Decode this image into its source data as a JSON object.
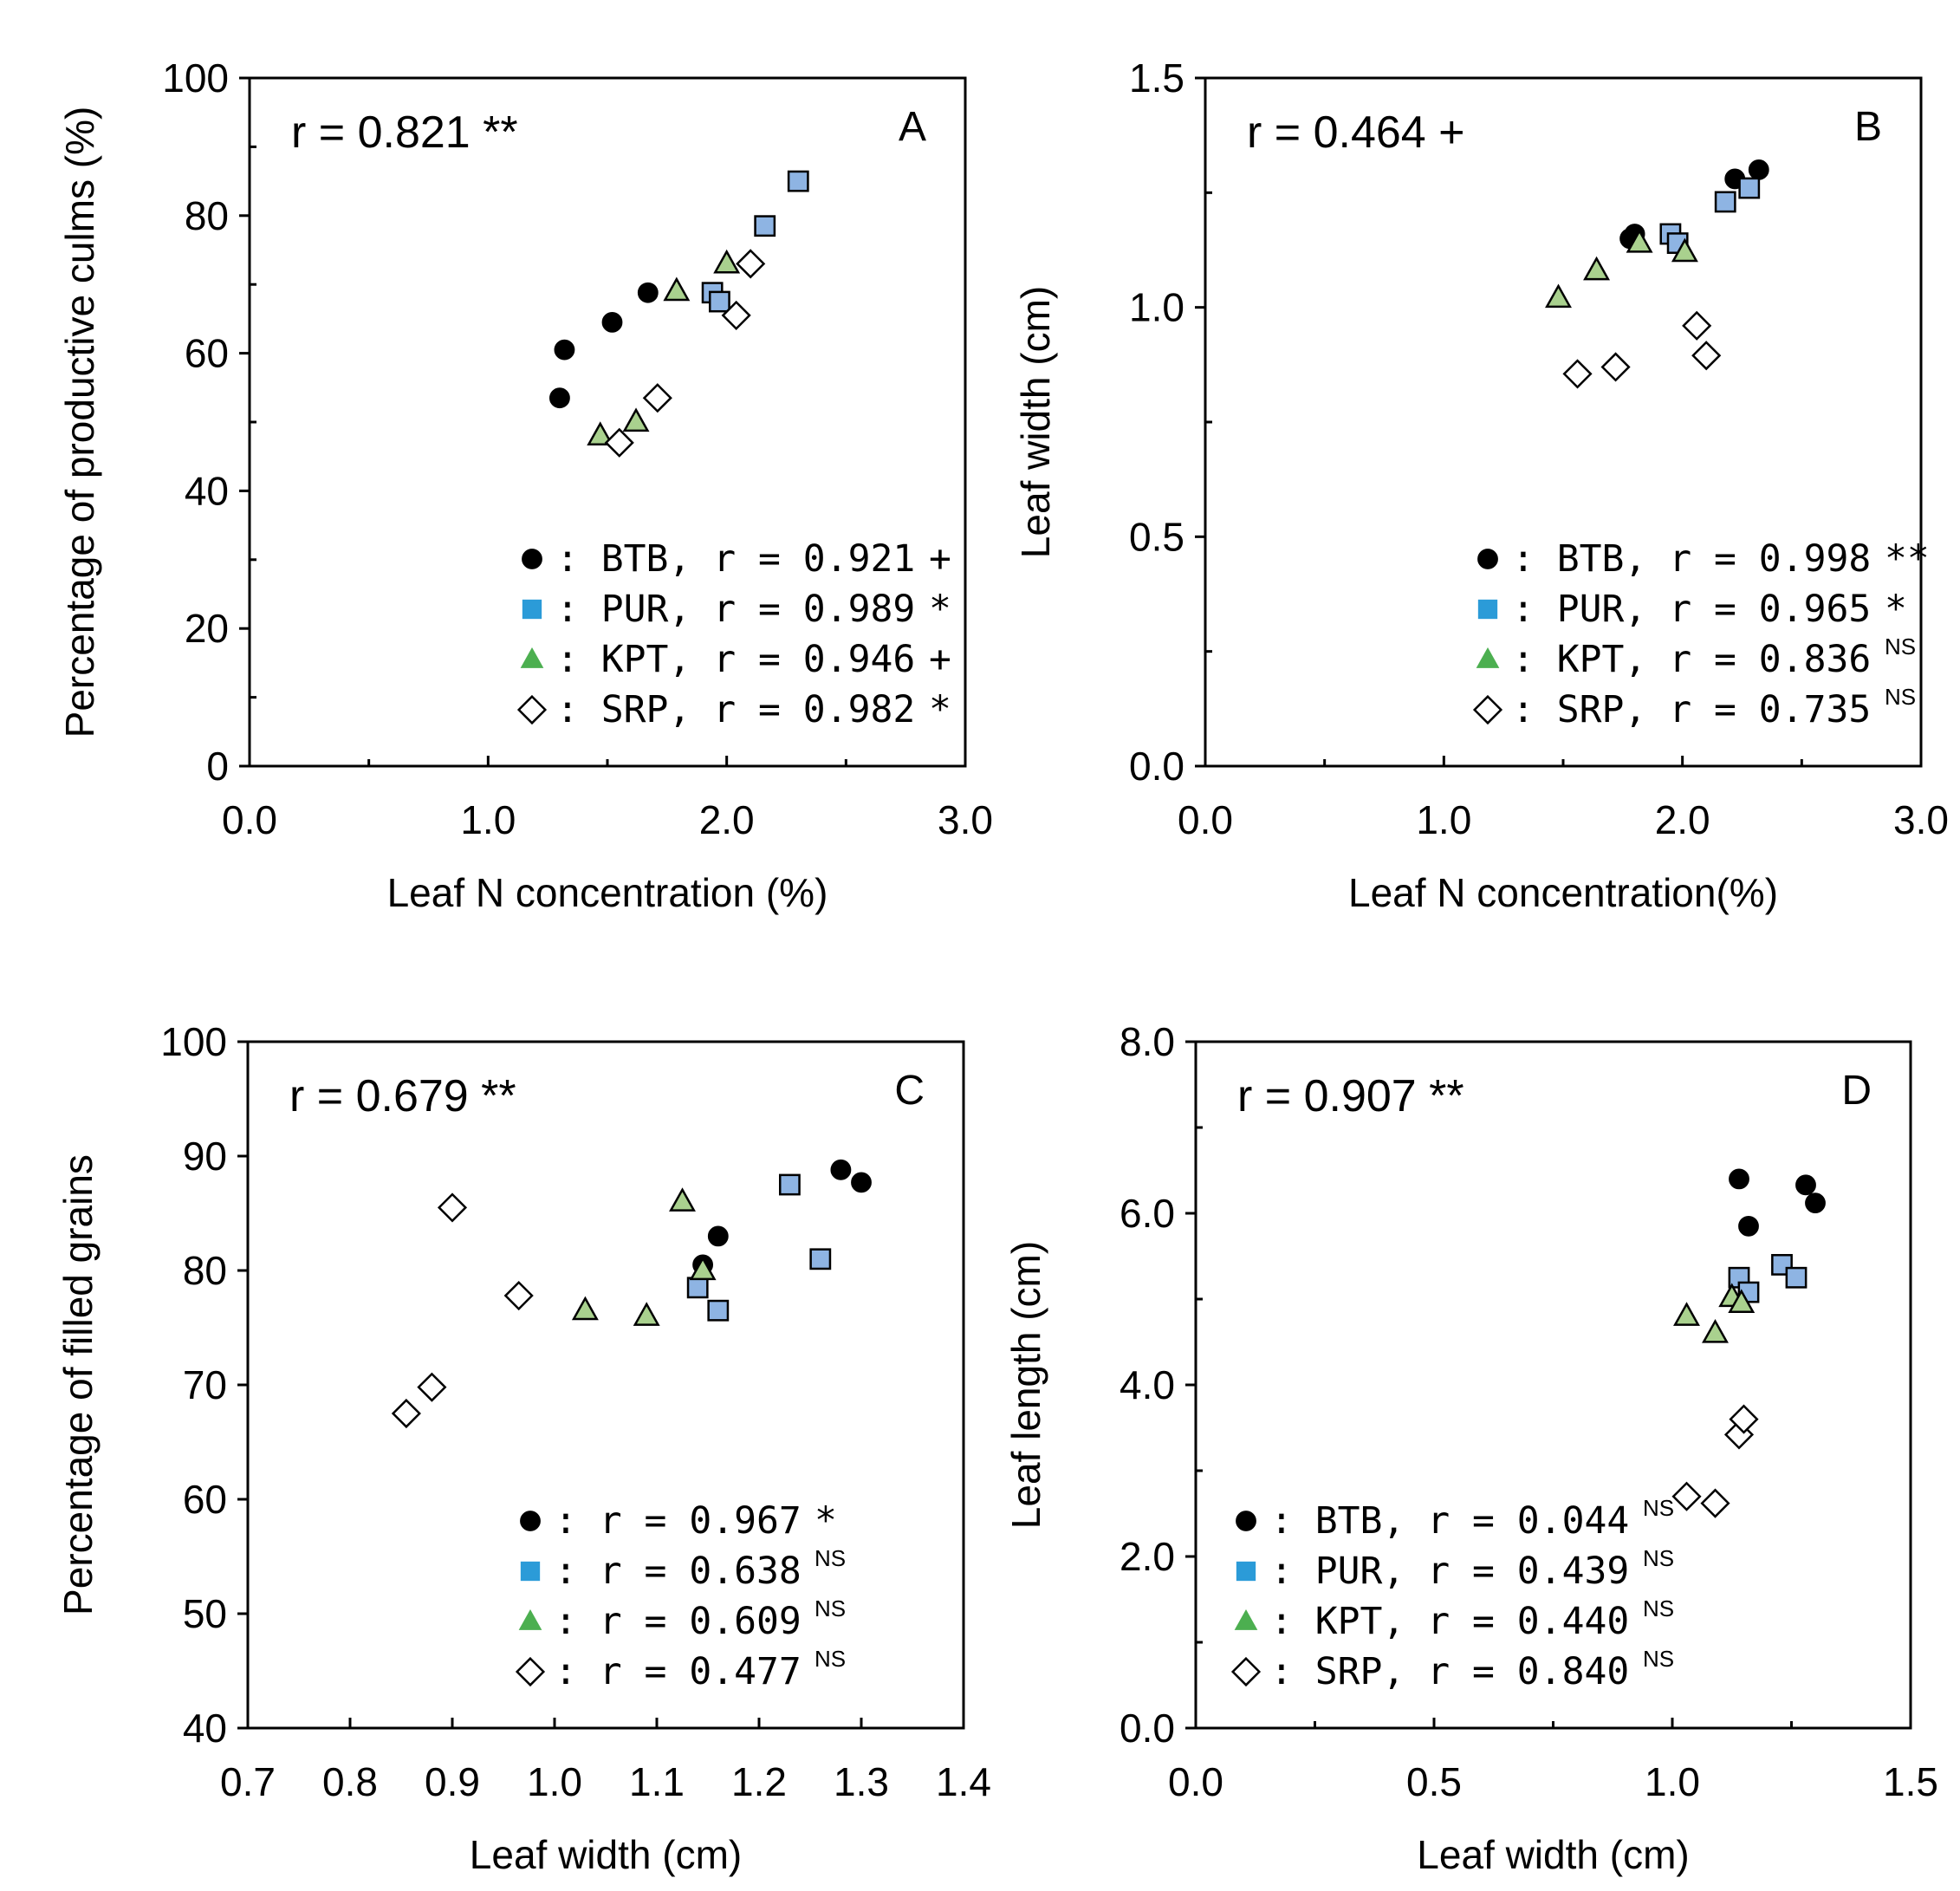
{
  "chart_data": [
    {
      "type": "scatter",
      "panel": "A",
      "title": "",
      "xlabel": "Leaf N concentration (%)",
      "ylabel": "Percentage of productive culms (%)",
      "xlim": [
        0.0,
        3.0
      ],
      "ylim": [
        0,
        100
      ],
      "x_major_ticks": [
        0.0,
        1.0,
        2.0,
        3.0
      ],
      "x_tick_labels": [
        "0.0",
        "1.0",
        "2.0",
        "3.0"
      ],
      "x_minor_ticks": [
        0.5,
        1.5,
        2.5
      ],
      "y_major_ticks": [
        0,
        20,
        40,
        60,
        80,
        100
      ],
      "y_tick_labels": [
        "0",
        "20",
        "40",
        "60",
        "80",
        "100"
      ],
      "y_minor_ticks": [
        10,
        30,
        50,
        70,
        90
      ],
      "overall_r": "r = 0.821 **",
      "legend_position": "bottom-right",
      "series": [
        {
          "name": "BTB",
          "marker": "circle",
          "points": [
            [
              1.3,
              53.5
            ],
            [
              1.32,
              60.5
            ],
            [
              1.52,
              64.5
            ],
            [
              1.67,
              68.8
            ]
          ],
          "legend_r": "r = 0.921",
          "sig": "+",
          "sig_style": "normal"
        },
        {
          "name": "PUR",
          "marker": "square",
          "points": [
            [
              1.94,
              68.8
            ],
            [
              1.97,
              67.5
            ],
            [
              2.16,
              78.5
            ],
            [
              2.3,
              85.0
            ]
          ],
          "legend_r": "r = 0.989",
          "sig": "*",
          "sig_style": "normal"
        },
        {
          "name": "KPT",
          "marker": "triangle",
          "points": [
            [
              1.47,
              48.0
            ],
            [
              1.62,
              50.0
            ],
            [
              1.79,
              69.0
            ],
            [
              2.0,
              73.0
            ]
          ],
          "legend_r": "r = 0.946",
          "sig": "+",
          "sig_style": "normal"
        },
        {
          "name": "SRP",
          "marker": "diamond",
          "points": [
            [
              1.55,
              47.0
            ],
            [
              1.71,
              53.5
            ],
            [
              2.04,
              65.5
            ],
            [
              2.1,
              73.0
            ]
          ],
          "legend_r": "r = 0.982",
          "sig": "*",
          "sig_style": "normal"
        }
      ]
    },
    {
      "type": "scatter",
      "panel": "B",
      "title": "",
      "xlabel": "Leaf N concentration(%)",
      "ylabel": "Leaf width (cm)",
      "xlim": [
        0.0,
        3.0
      ],
      "ylim": [
        0.0,
        1.5
      ],
      "x_major_ticks": [
        0.0,
        1.0,
        2.0,
        3.0
      ],
      "x_tick_labels": [
        "0.0",
        "1.0",
        "2.0",
        "3.0"
      ],
      "x_minor_ticks": [
        0.5,
        1.5,
        2.5
      ],
      "y_major_ticks": [
        0.0,
        0.5,
        1.0,
        1.5
      ],
      "y_tick_labels": [
        "0.0",
        "0.5",
        "1.0",
        "1.5"
      ],
      "y_minor_ticks": [
        0.25,
        0.75,
        1.25
      ],
      "overall_r": "r = 0.464 +",
      "legend_position": "bottom-right",
      "series": [
        {
          "name": "BTB",
          "marker": "circle",
          "points": [
            [
              1.78,
              1.15
            ],
            [
              1.8,
              1.16
            ],
            [
              2.22,
              1.28
            ],
            [
              2.32,
              1.3
            ]
          ],
          "legend_r": "r = 0.998",
          "sig": "**",
          "sig_style": "normal"
        },
        {
          "name": "PUR",
          "marker": "square",
          "points": [
            [
              1.95,
              1.16
            ],
            [
              1.98,
              1.14
            ],
            [
              2.18,
              1.23
            ],
            [
              2.28,
              1.26
            ]
          ],
          "legend_r": "r = 0.965",
          "sig": "*",
          "sig_style": "normal"
        },
        {
          "name": "KPT",
          "marker": "triangle",
          "points": [
            [
              1.48,
              1.02
            ],
            [
              1.64,
              1.08
            ],
            [
              1.82,
              1.14
            ],
            [
              2.01,
              1.12
            ]
          ],
          "legend_r": "r = 0.836",
          "sig": "NS",
          "sig_style": "superscript"
        },
        {
          "name": "SRP",
          "marker": "diamond",
          "points": [
            [
              1.56,
              0.855
            ],
            [
              1.72,
              0.87
            ],
            [
              2.06,
              0.96
            ],
            [
              2.1,
              0.895
            ]
          ],
          "legend_r": "r = 0.735",
          "sig": "NS",
          "sig_style": "superscript"
        }
      ]
    },
    {
      "type": "scatter",
      "panel": "C",
      "title": "",
      "xlabel": "Leaf width (cm)",
      "ylabel": "Percentage of filled grains",
      "xlim": [
        0.7,
        1.4
      ],
      "ylim": [
        40,
        100
      ],
      "x_major_ticks": [
        0.7,
        0.8,
        0.9,
        1.0,
        1.1,
        1.2,
        1.3,
        1.4
      ],
      "x_tick_labels": [
        "0.7",
        "0.8",
        "0.9",
        "1.0",
        "1.1",
        "1.2",
        "1.3",
        "1.4"
      ],
      "x_minor_ticks": [],
      "y_major_ticks": [
        40,
        50,
        60,
        70,
        80,
        90,
        100
      ],
      "y_tick_labels": [
        "40",
        "50",
        "60",
        "70",
        "80",
        "90",
        "100"
      ],
      "y_minor_ticks": [],
      "overall_r": "r = 0.679 **",
      "legend_position": "bottom-right",
      "series": [
        {
          "name": "",
          "marker": "circle",
          "points": [
            [
              1.145,
              80.5
            ],
            [
              1.16,
              83.0
            ],
            [
              1.28,
              88.8
            ],
            [
              1.3,
              87.7
            ]
          ],
          "legend_r": "r = 0.967",
          "sig": "*",
          "sig_style": "normal"
        },
        {
          "name": "",
          "marker": "square",
          "points": [
            [
              1.14,
              78.5
            ],
            [
              1.16,
              76.5
            ],
            [
              1.23,
              87.5
            ],
            [
              1.26,
              81.0
            ]
          ],
          "legend_r": "r = 0.638",
          "sig": "NS",
          "sig_style": "superscript"
        },
        {
          "name": "",
          "marker": "triangle",
          "points": [
            [
              1.03,
              76.5
            ],
            [
              1.09,
              76.0
            ],
            [
              1.125,
              86.0
            ],
            [
              1.145,
              80.0
            ]
          ],
          "legend_r": "r = 0.609",
          "sig": "NS",
          "sig_style": "superscript"
        },
        {
          "name": "",
          "marker": "diamond",
          "points": [
            [
              0.855,
              67.5
            ],
            [
              0.88,
              69.8
            ],
            [
              0.9,
              85.5
            ],
            [
              0.965,
              77.8
            ]
          ],
          "legend_r": "r = 0.477",
          "sig": "NS",
          "sig_style": "superscript"
        }
      ]
    },
    {
      "type": "scatter",
      "panel": "D",
      "title": "",
      "xlabel": "Leaf width (cm)",
      "ylabel": "Leaf length (cm)",
      "xlim": [
        0.0,
        1.5
      ],
      "ylim": [
        0.0,
        8.0
      ],
      "x_major_ticks": [
        0.0,
        0.5,
        1.0,
        1.5
      ],
      "x_tick_labels": [
        "0.0",
        "0.5",
        "1.0",
        "1.5"
      ],
      "x_minor_ticks": [
        0.25,
        0.75,
        1.25
      ],
      "y_major_ticks": [
        0.0,
        2.0,
        4.0,
        6.0,
        8.0
      ],
      "y_tick_labels": [
        "0.0",
        "2.0",
        "4.0",
        "6.0",
        "8.0"
      ],
      "y_minor_ticks": [
        1.0,
        3.0,
        5.0,
        7.0
      ],
      "overall_r": "r = 0.907 **",
      "legend_position": "bottom-left",
      "series": [
        {
          "name": "BTB",
          "marker": "circle",
          "points": [
            [
              1.14,
              6.4
            ],
            [
              1.16,
              5.85
            ],
            [
              1.28,
              6.33
            ],
            [
              1.3,
              6.12
            ]
          ],
          "legend_r": "r = 0.044",
          "sig": "NS",
          "sig_style": "superscript"
        },
        {
          "name": "PUR",
          "marker": "square",
          "points": [
            [
              1.14,
              5.25
            ],
            [
              1.16,
              5.08
            ],
            [
              1.23,
              5.4
            ],
            [
              1.26,
              5.25
            ]
          ],
          "legend_r": "r = 0.439",
          "sig": "NS",
          "sig_style": "superscript"
        },
        {
          "name": "KPT",
          "marker": "triangle",
          "points": [
            [
              1.03,
              4.8
            ],
            [
              1.09,
              4.6
            ],
            [
              1.125,
              5.02
            ],
            [
              1.145,
              4.95
            ]
          ],
          "legend_r": "r = 0.440",
          "sig": "NS",
          "sig_style": "superscript"
        },
        {
          "name": "SRP",
          "marker": "diamond",
          "points": [
            [
              1.03,
              2.7
            ],
            [
              1.09,
              2.62
            ],
            [
              1.14,
              3.42
            ],
            [
              1.15,
              3.6
            ]
          ],
          "legend_r": "r = 0.840",
          "sig": "NS",
          "sig_style": "superscript"
        }
      ]
    }
  ],
  "colors": {
    "btb": "#000000",
    "pur_marker": "#8EB4E3",
    "pur_legend": "#2B9BD8",
    "kpt_marker": "#A9D18E",
    "kpt_legend": "#4CAF50",
    "srp": "#ffffff",
    "axis": "#000000"
  }
}
